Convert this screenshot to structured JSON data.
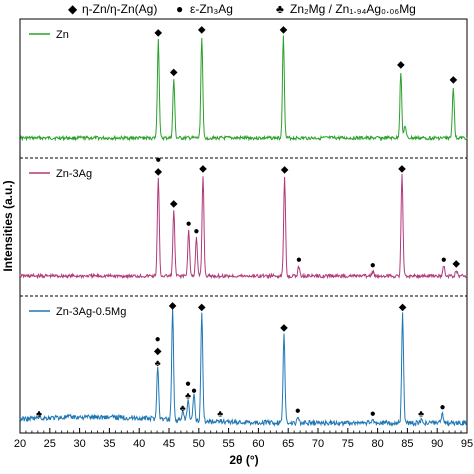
{
  "chart_data": {
    "type": "line",
    "xlabel": "2θ (°)",
    "ylabel": "Intensities (a.u.)",
    "xlim": [
      20,
      95
    ],
    "x_ticks": [
      "20",
      "25",
      "30",
      "35",
      "40",
      "45",
      "50",
      "55",
      "60",
      "65",
      "70",
      "75",
      "80",
      "85",
      "90",
      "95"
    ],
    "legend_title": [
      {
        "symbol": "◆",
        "text": "η-Zn/η-Zn(Ag)"
      },
      {
        "symbol": "●",
        "text": "ε-Zn₃Ag"
      },
      {
        "symbol": "♣",
        "text": "Zn₂Mg / Zn₁.₉₄Ag₀.₀₆Mg"
      }
    ],
    "panels": [
      {
        "name": "Zn",
        "color": "#2ca02c",
        "peaks": [
          {
            "x": 43.2,
            "h": 0.92
          },
          {
            "x": 45.8,
            "h": 0.55
          },
          {
            "x": 50.5,
            "h": 0.95
          },
          {
            "x": 64.2,
            "h": 0.95
          },
          {
            "x": 83.9,
            "h": 0.62
          },
          {
            "x": 84.6,
            "h": 0.12
          },
          {
            "x": 92.7,
            "h": 0.48
          }
        ],
        "markers": [
          {
            "x": 43.2,
            "symbols": [
              "◆"
            ]
          },
          {
            "x": 45.8,
            "symbols": [
              "◆"
            ]
          },
          {
            "x": 50.5,
            "symbols": [
              "◆"
            ]
          },
          {
            "x": 64.2,
            "symbols": [
              "◆"
            ]
          },
          {
            "x": 83.9,
            "symbols": [
              "◆"
            ]
          },
          {
            "x": 92.7,
            "symbols": [
              "◆"
            ]
          }
        ]
      },
      {
        "name": "Zn-3Ag",
        "color": "#b03a7a",
        "peaks": [
          {
            "x": 43.2,
            "h": 0.92
          },
          {
            "x": 45.8,
            "h": 0.62
          },
          {
            "x": 48.3,
            "h": 0.43
          },
          {
            "x": 49.6,
            "h": 0.36
          },
          {
            "x": 50.7,
            "h": 0.95
          },
          {
            "x": 64.4,
            "h": 0.94
          },
          {
            "x": 66.8,
            "h": 0.09
          },
          {
            "x": 79.2,
            "h": 0.04
          },
          {
            "x": 84.1,
            "h": 0.95
          },
          {
            "x": 91.1,
            "h": 0.09
          },
          {
            "x": 93.2,
            "h": 0.05
          }
        ],
        "markers": [
          {
            "x": 43.2,
            "symbols": [
              "●",
              "◆"
            ]
          },
          {
            "x": 45.8,
            "symbols": [
              "◆"
            ]
          },
          {
            "x": 48.3,
            "symbols": [
              "●"
            ]
          },
          {
            "x": 49.6,
            "symbols": [
              "●"
            ]
          },
          {
            "x": 50.7,
            "symbols": [
              "◆"
            ]
          },
          {
            "x": 64.4,
            "symbols": [
              "◆"
            ]
          },
          {
            "x": 66.8,
            "symbols": [
              "●"
            ]
          },
          {
            "x": 79.2,
            "symbols": [
              "●"
            ]
          },
          {
            "x": 84.1,
            "symbols": [
              "◆"
            ]
          },
          {
            "x": 91.1,
            "symbols": [
              "●"
            ]
          },
          {
            "x": 93.2,
            "symbols": [
              "◆"
            ]
          }
        ]
      },
      {
        "name": "Zn-3Ag-0.5Mg",
        "color": "#1f77b4",
        "peaks": [
          {
            "x": 23.2,
            "h": 0.02
          },
          {
            "x": 43.1,
            "h": 0.46
          },
          {
            "x": 45.6,
            "h": 0.96
          },
          {
            "x": 47.3,
            "h": 0.07
          },
          {
            "x": 48.2,
            "h": 0.18
          },
          {
            "x": 49.2,
            "h": 0.22
          },
          {
            "x": 50.5,
            "h": 0.95
          },
          {
            "x": 53.6,
            "h": 0.02
          },
          {
            "x": 64.3,
            "h": 0.77
          },
          {
            "x": 66.6,
            "h": 0.05
          },
          {
            "x": 79.2,
            "h": 0.02
          },
          {
            "x": 84.2,
            "h": 0.95
          },
          {
            "x": 87.3,
            "h": 0.02
          },
          {
            "x": 90.9,
            "h": 0.08
          }
        ],
        "markers": [
          {
            "x": 23.2,
            "symbols": [
              "♣"
            ]
          },
          {
            "x": 43.1,
            "symbols": [
              "●",
              "◆",
              "♣"
            ]
          },
          {
            "x": 45.6,
            "symbols": [
              "◆"
            ]
          },
          {
            "x": 47.3,
            "symbols": [
              "♣"
            ]
          },
          {
            "x": 48.2,
            "symbols": [
              "●",
              "♣"
            ]
          },
          {
            "x": 49.2,
            "symbols": [
              "●"
            ]
          },
          {
            "x": 50.5,
            "symbols": [
              "◆"
            ]
          },
          {
            "x": 53.6,
            "symbols": [
              "♣"
            ]
          },
          {
            "x": 64.3,
            "symbols": [
              "◆"
            ]
          },
          {
            "x": 66.6,
            "symbols": [
              "●"
            ]
          },
          {
            "x": 79.2,
            "symbols": [
              "●"
            ]
          },
          {
            "x": 84.2,
            "symbols": [
              "◆"
            ]
          },
          {
            "x": 87.3,
            "symbols": [
              "♣"
            ]
          },
          {
            "x": 90.9,
            "symbols": [
              "●"
            ]
          }
        ]
      }
    ]
  }
}
